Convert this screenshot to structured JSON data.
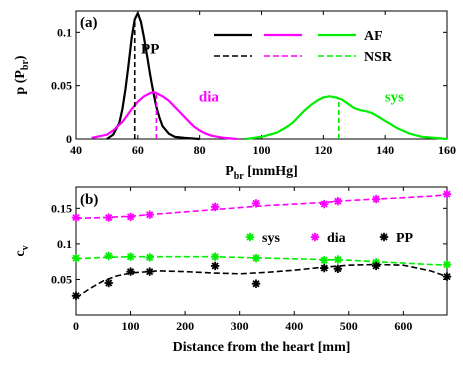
{
  "chart_data": [
    {
      "panel_label": "(a)",
      "type": "line",
      "xlabel": "P",
      "xlabel_sub": "br",
      "xlabel_unit": "[mmHg]",
      "ylabel": "p (P",
      "ylabel_sub": "br",
      "ylabel_close": ")",
      "xlim": [
        40,
        160
      ],
      "ylim": [
        0,
        0.12
      ],
      "xticks": [
        40,
        60,
        80,
        100,
        120,
        140,
        160
      ],
      "yticks": [
        0,
        0.05,
        0.1
      ],
      "ytick_labels": [
        "0",
        "0.05",
        "0.1"
      ],
      "legend": {
        "columns": [
          "",
          "",
          ""
        ],
        "rows": [
          "AF",
          "NSR"
        ],
        "column_colors": [
          "#000000",
          "#ff00ff",
          "#00ee00"
        ],
        "placement": "top-right"
      },
      "curve_labels": [
        {
          "text": "PP",
          "color": "#000000",
          "x": 64,
          "y": 0.085
        },
        {
          "text": "dia",
          "color": "#ff00ff",
          "x": 83,
          "y": 0.04
        },
        {
          "text": "sys",
          "color": "#00ee00",
          "x": 143,
          "y": 0.04
        }
      ],
      "series": [
        {
          "group": "PP",
          "condition": "AF",
          "color": "#000000",
          "style": "solid",
          "x": [
            50,
            52,
            54,
            55,
            56,
            57,
            58,
            59,
            60,
            61,
            62,
            63,
            64,
            65,
            66,
            67,
            68,
            70,
            72,
            75,
            80
          ],
          "y": [
            0.0,
            0.004,
            0.015,
            0.028,
            0.047,
            0.07,
            0.095,
            0.112,
            0.118,
            0.11,
            0.095,
            0.078,
            0.06,
            0.044,
            0.03,
            0.02,
            0.012,
            0.005,
            0.002,
            0.001,
            0.0
          ]
        },
        {
          "group": "dia",
          "condition": "AF",
          "color": "#ff00ff",
          "style": "solid",
          "x": [
            45,
            50,
            52,
            55,
            58,
            60,
            62,
            64,
            65,
            66,
            68,
            70,
            72,
            74,
            76,
            78,
            80,
            82,
            84,
            88,
            92
          ],
          "y": [
            0.001,
            0.004,
            0.008,
            0.016,
            0.028,
            0.035,
            0.04,
            0.043,
            0.044,
            0.043,
            0.04,
            0.036,
            0.03,
            0.024,
            0.018,
            0.012,
            0.008,
            0.005,
            0.003,
            0.001,
            0.0
          ]
        },
        {
          "group": "sys",
          "condition": "AF",
          "color": "#00ee00",
          "style": "solid",
          "x": [
            95,
            100,
            105,
            108,
            110,
            112,
            114,
            116,
            118,
            120,
            122,
            124,
            126,
            128,
            130,
            132,
            134,
            136,
            140,
            144,
            148,
            152,
            156,
            160
          ],
          "y": [
            0.0,
            0.002,
            0.006,
            0.011,
            0.015,
            0.021,
            0.027,
            0.032,
            0.036,
            0.039,
            0.04,
            0.039,
            0.037,
            0.033,
            0.029,
            0.027,
            0.026,
            0.024,
            0.017,
            0.01,
            0.005,
            0.002,
            0.001,
            0.0
          ]
        }
      ],
      "markers": [
        {
          "group": "PP",
          "condition": "NSR",
          "color": "#000000",
          "style": "dashed",
          "x": 59,
          "y": 0.112
        },
        {
          "group": "dia",
          "condition": "NSR",
          "color": "#ff00ff",
          "style": "dashed",
          "x": 66,
          "y": 0.044
        },
        {
          "group": "sys",
          "condition": "NSR",
          "color": "#00ee00",
          "style": "dashed",
          "x": 125,
          "y": 0.039
        }
      ]
    },
    {
      "panel_label": "(b)",
      "type": "scatter",
      "xlabel": "Distance from the heart [mm]",
      "ylabel": "c",
      "ylabel_sub": "v",
      "xlim": [
        0,
        680
      ],
      "ylim": [
        0,
        0.18
      ],
      "xticks": [
        0,
        100,
        200,
        300,
        400,
        500,
        600
      ],
      "yticks": [
        0.05,
        0.1,
        0.15
      ],
      "ytick_labels": [
        "0.05",
        "0.1",
        "0.15"
      ],
      "legend": {
        "placement": "middle-right"
      },
      "series": [
        {
          "name": "sys",
          "color": "#00ee00",
          "x": [
            0,
            60,
            100,
            135,
            255,
            330,
            455,
            480,
            550,
            680
          ],
          "y": [
            0.08,
            0.083,
            0.082,
            0.081,
            0.082,
            0.08,
            0.077,
            0.078,
            0.074,
            0.071
          ],
          "fit_x": [
            0,
            50,
            100,
            150,
            200,
            250,
            300,
            350,
            400,
            450,
            500,
            550,
            600,
            650,
            680
          ],
          "fit_y": [
            0.079,
            0.081,
            0.082,
            0.082,
            0.082,
            0.082,
            0.081,
            0.08,
            0.079,
            0.078,
            0.077,
            0.075,
            0.073,
            0.071,
            0.07
          ]
        },
        {
          "name": "dia",
          "color": "#ff00ff",
          "x": [
            0,
            60,
            100,
            135,
            255,
            330,
            455,
            480,
            550,
            680
          ],
          "y": [
            0.137,
            0.137,
            0.138,
            0.141,
            0.152,
            0.157,
            0.156,
            0.16,
            0.163,
            0.17
          ],
          "fit_x": [
            0,
            50,
            100,
            150,
            200,
            250,
            300,
            350,
            400,
            450,
            500,
            550,
            600,
            650,
            680
          ],
          "fit_y": [
            0.136,
            0.137,
            0.139,
            0.142,
            0.145,
            0.148,
            0.151,
            0.154,
            0.156,
            0.158,
            0.161,
            0.163,
            0.165,
            0.167,
            0.169
          ]
        },
        {
          "name": "PP",
          "color": "#000000",
          "x": [
            0,
            60,
            100,
            135,
            255,
            330,
            455,
            480,
            550,
            680
          ],
          "y": [
            0.027,
            0.045,
            0.061,
            0.061,
            0.069,
            0.044,
            0.066,
            0.065,
            0.069,
            0.054
          ],
          "fit_x": [
            0,
            25,
            50,
            75,
            100,
            150,
            200,
            250,
            300,
            350,
            400,
            450,
            500,
            550,
            600,
            650,
            680
          ],
          "fit_y": [
            0.024,
            0.037,
            0.048,
            0.055,
            0.059,
            0.062,
            0.061,
            0.059,
            0.058,
            0.06,
            0.063,
            0.067,
            0.07,
            0.071,
            0.07,
            0.062,
            0.054
          ]
        }
      ]
    }
  ]
}
